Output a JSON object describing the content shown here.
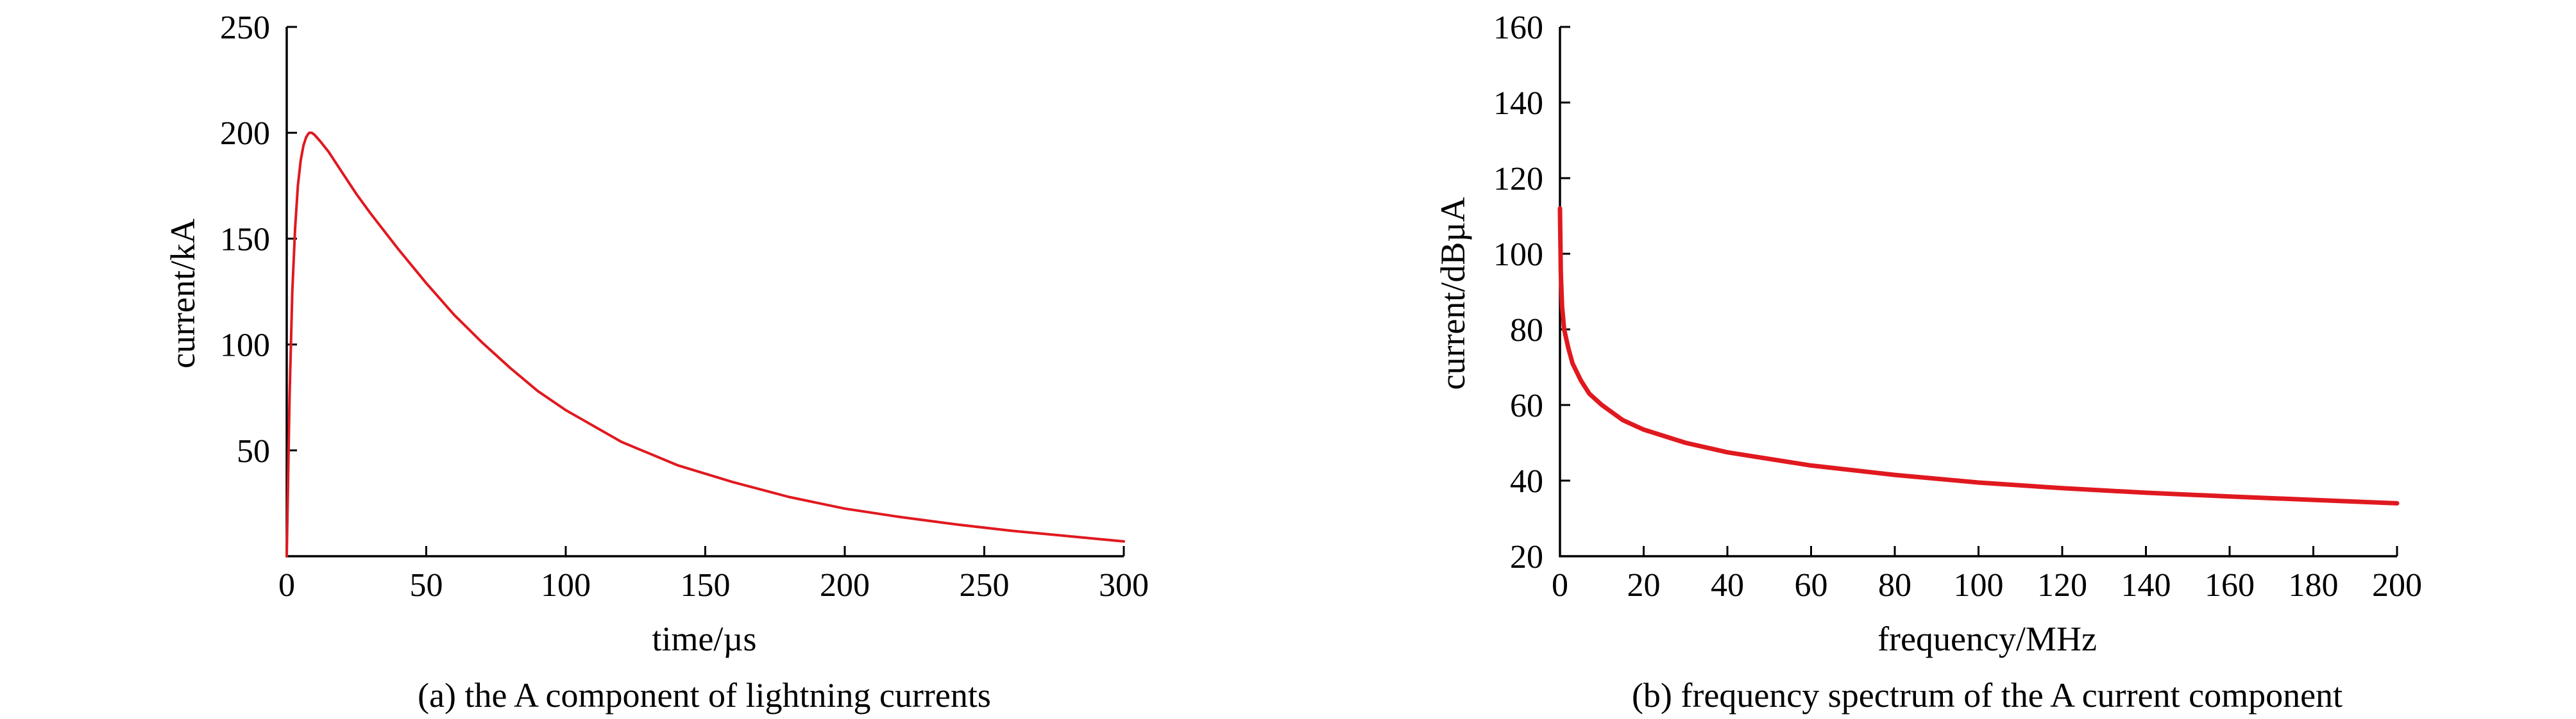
{
  "chart_data": [
    {
      "type": "line",
      "xlabel": "time/µs",
      "ylabel": "current/kA",
      "caption": "(a) the A component of lightning currents",
      "xlim": [
        0,
        300
      ],
      "ylim": [
        0,
        250
      ],
      "xticks": [
        0,
        50,
        100,
        150,
        200,
        250,
        300
      ],
      "yticks": [
        50,
        100,
        150,
        200,
        250
      ],
      "grid": false,
      "color": "#e0191f",
      "series": [
        {
          "x": [
            0,
            1,
            2,
            3,
            4,
            5,
            6,
            7,
            8,
            9,
            10,
            12,
            15,
            20,
            25,
            30,
            40,
            50,
            60,
            70,
            80,
            90,
            100,
            120,
            140,
            160,
            180,
            200,
            220,
            240,
            260,
            280,
            300
          ],
          "values": [
            0,
            75,
            125,
            155,
            175,
            187,
            194,
            198,
            200,
            200,
            199,
            196,
            191,
            181,
            171,
            162,
            145,
            129,
            114,
            101,
            89,
            78,
            69,
            54,
            43,
            35,
            28,
            22.5,
            18.5,
            15,
            12,
            9.5,
            7
          ]
        }
      ]
    },
    {
      "type": "line",
      "xlabel": "frequency/MHz",
      "ylabel": "current/dBµA",
      "caption": "(b) frequency spectrum of the A current component",
      "xlim": [
        0,
        200
      ],
      "ylim": [
        20,
        160
      ],
      "xticks": [
        0,
        20,
        40,
        60,
        80,
        100,
        120,
        140,
        160,
        180,
        200
      ],
      "yticks": [
        20,
        40,
        60,
        80,
        100,
        120,
        140,
        160
      ],
      "grid": false,
      "color": "#e0191f",
      "series": [
        {
          "x": [
            0,
            0.2,
            0.5,
            1,
            2,
            3,
            5,
            7,
            10,
            15,
            20,
            30,
            40,
            60,
            80,
            100,
            120,
            140,
            160,
            180,
            200
          ],
          "values": [
            112,
            95,
            86,
            80,
            75,
            71,
            66.5,
            63,
            60,
            56,
            53.5,
            50,
            47.5,
            44,
            41.5,
            39.5,
            38,
            36.8,
            35.8,
            34.9,
            34
          ]
        }
      ]
    }
  ]
}
